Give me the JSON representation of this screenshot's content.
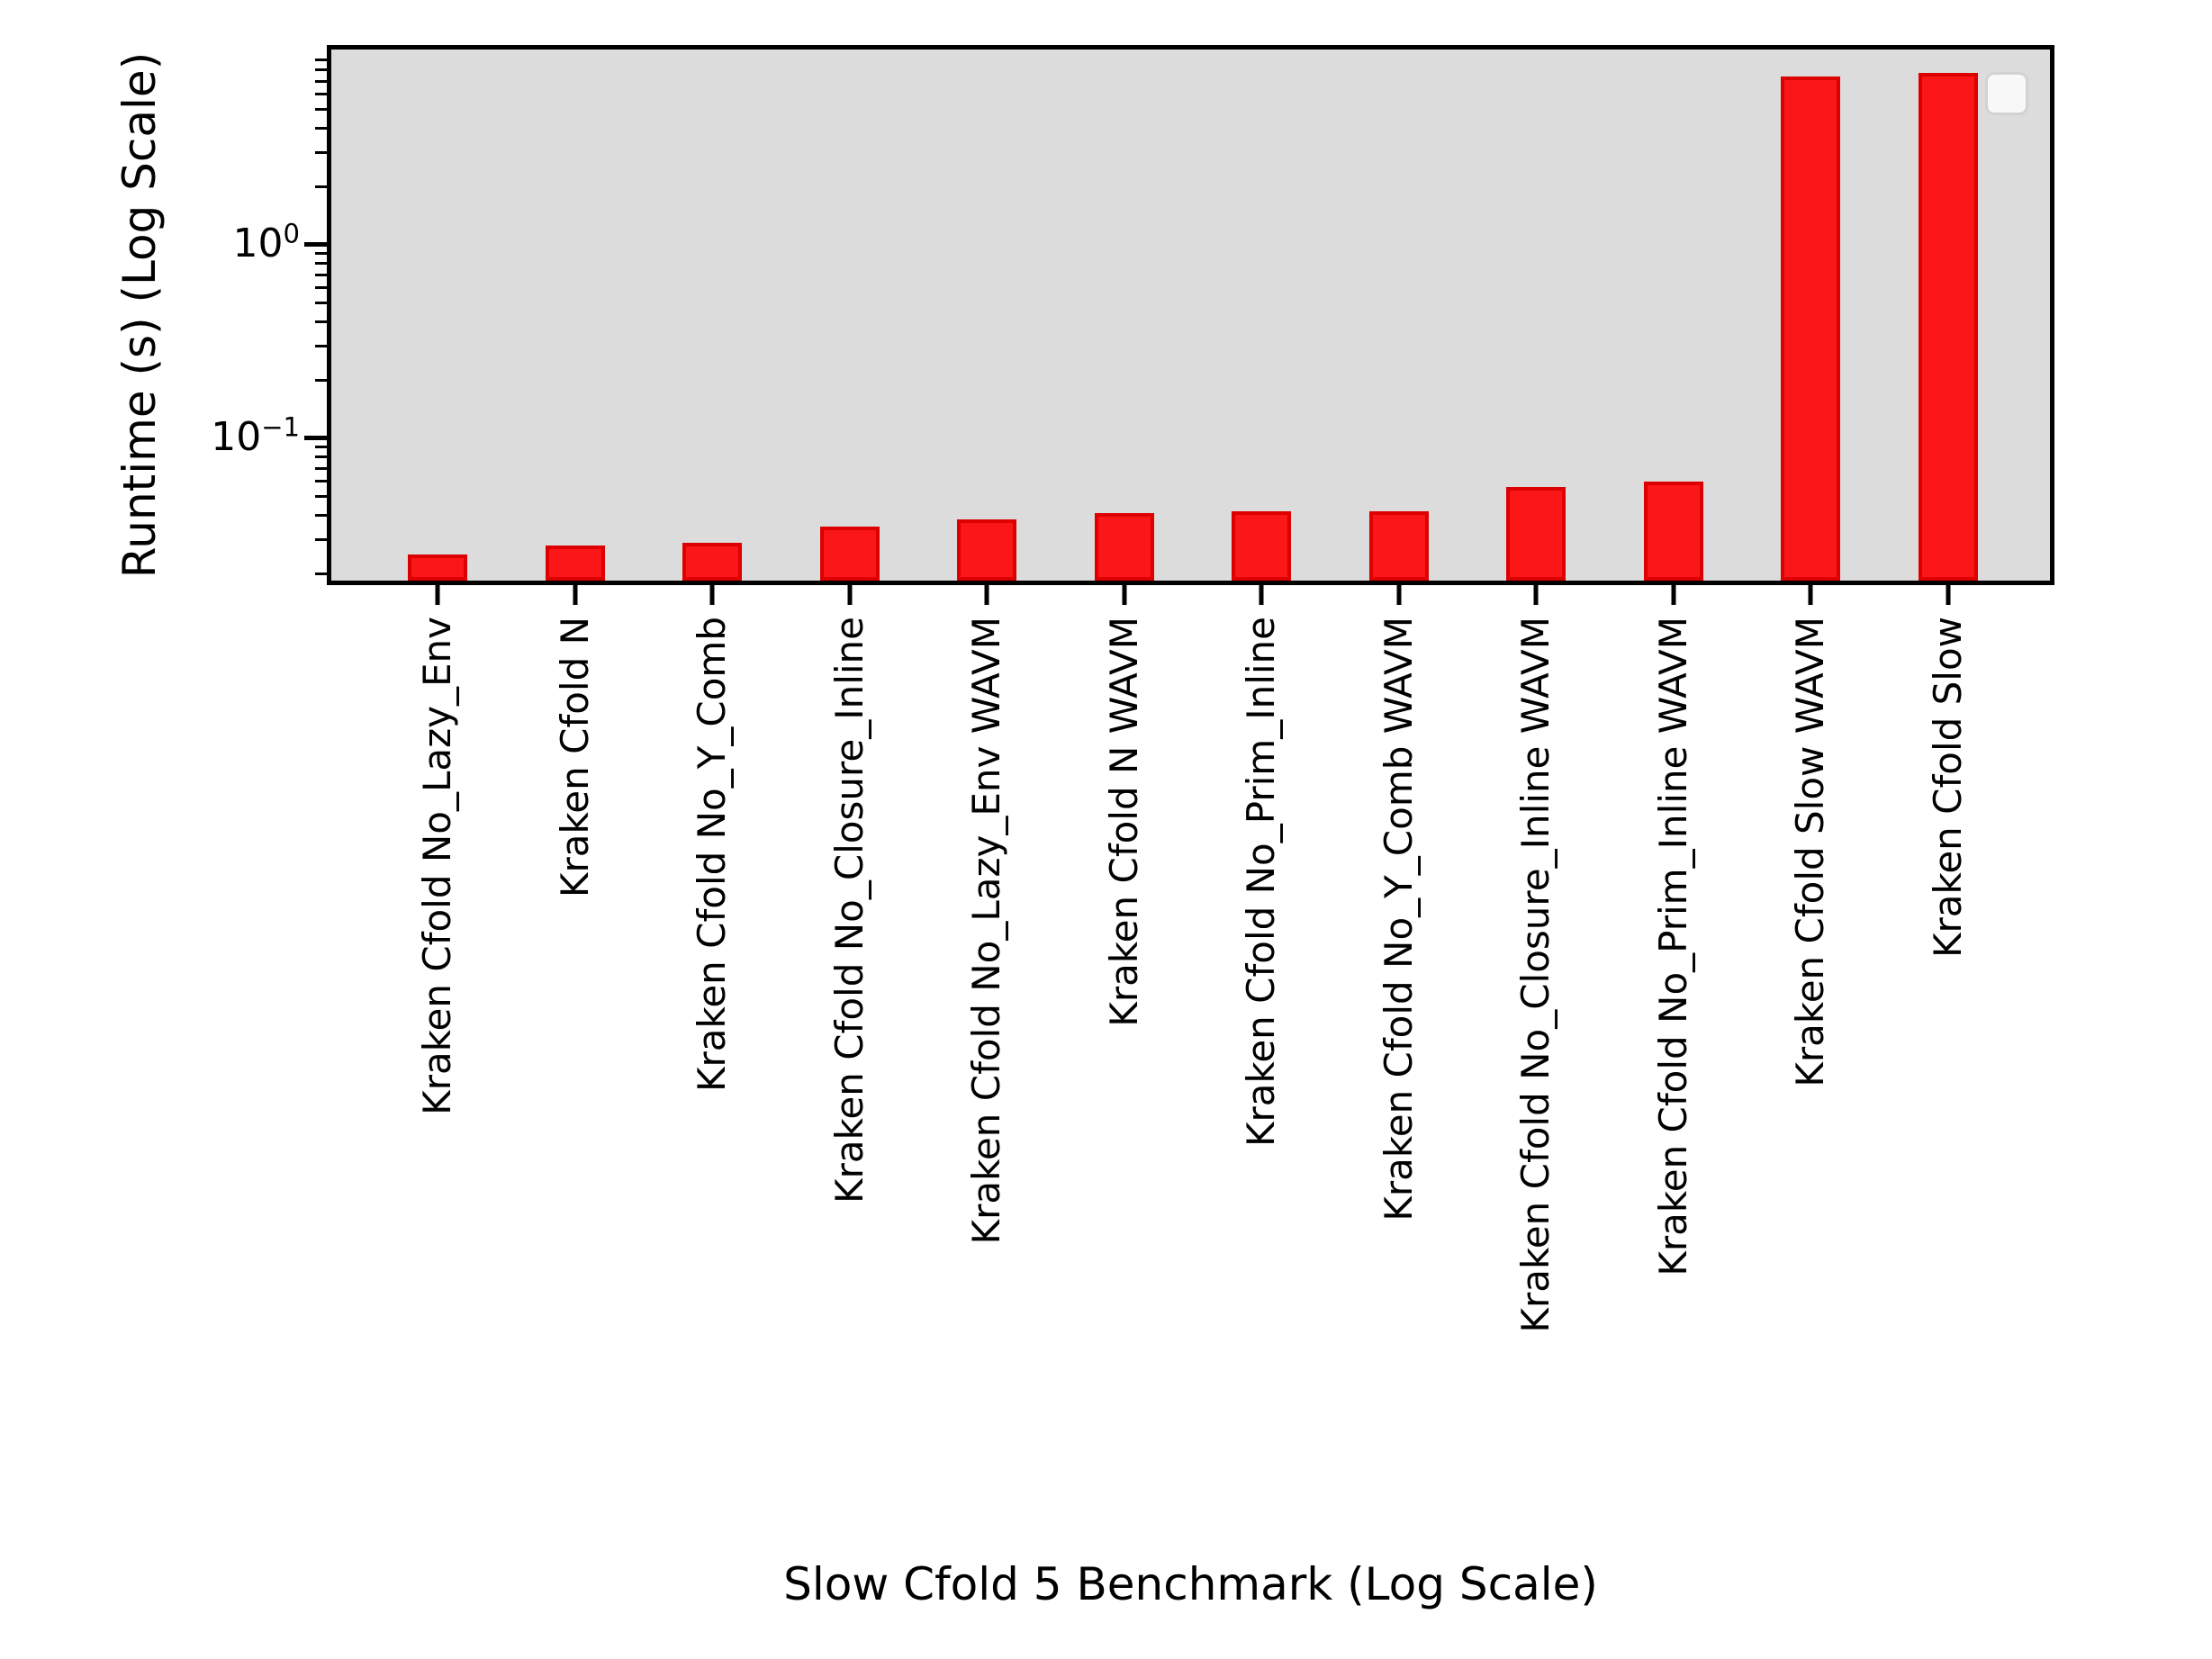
{
  "chart_data": {
    "type": "bar",
    "title": "",
    "xlabel": "Slow Cfold 5 Benchmark (Log Scale)",
    "ylabel": "Runtime (s) (Log Scale)",
    "yscale": "log",
    "ylim": [
      0.0184,
      10.2
    ],
    "grid": false,
    "legend": {
      "visible": true,
      "entries": [],
      "position": "upper right"
    },
    "categories": [
      "Kraken Cfold No_Lazy_Env",
      "Kraken Cfold N",
      "Kraken Cfold No_Y_Comb",
      "Kraken Cfold No_Closure_Inline",
      "Kraken Cfold No_Lazy_Env WAVM",
      "Kraken Cfold N WAVM",
      "Kraken Cfold No_Prim_Inline",
      "Kraken Cfold No_Y_Comb WAVM",
      "Kraken Cfold No_Closure_Inline WAVM",
      "Kraken Cfold No_Prim_Inline WAVM",
      "Kraken Cfold Slow WAVM",
      "Kraken Cfold Slow"
    ],
    "values": [
      0.025,
      0.028,
      0.029,
      0.035,
      0.038,
      0.041,
      0.042,
      0.042,
      0.056,
      0.06,
      7.4,
      7.7
    ],
    "y_major_ticks": [
      {
        "value": 1,
        "base": "10",
        "exp": "0"
      },
      {
        "value": 0.1,
        "base": "10",
        "exp": "−1"
      }
    ],
    "y_minor_ticks": [
      0.02,
      0.03,
      0.04,
      0.05,
      0.06,
      0.07,
      0.08,
      0.09,
      0.2,
      0.3,
      0.4,
      0.5,
      0.6,
      0.7,
      0.8,
      0.9,
      2,
      3,
      4,
      5,
      6,
      7,
      8,
      9
    ],
    "colors": {
      "bar_fill": "#fb1717",
      "bar_edge": "#dd0000",
      "plot_background": "#dcdcdc",
      "figure_background": "#ffffff",
      "axis": "#000000"
    }
  }
}
